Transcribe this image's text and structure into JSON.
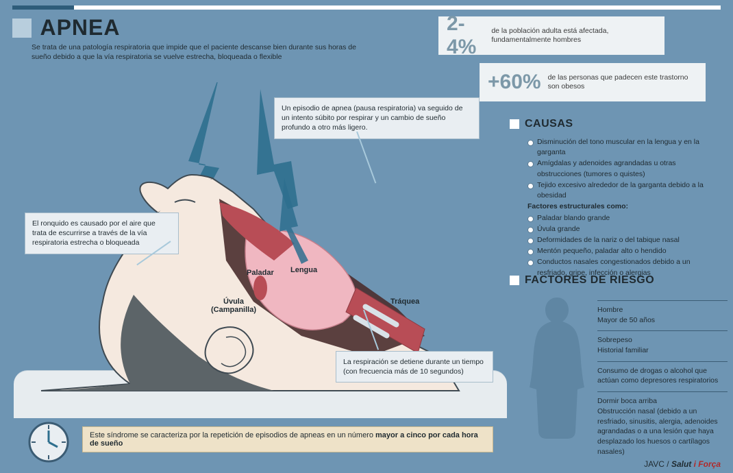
{
  "colors": {
    "background": "#6e95b3",
    "light_panel": "#eef2f4",
    "title_square": "#b8cedd",
    "text_dark": "#1f2a30",
    "stat_num": "#7c98a8",
    "callout_bg": "#e9eef2",
    "callout_border": "#a8bdcb",
    "bottom_bg": "#eee2c8",
    "silhouette": "#5f86a3",
    "head_outline": "#3f4a52",
    "skin": "#f5e9df",
    "tongue": "#f0b7c1",
    "throat": "#b84d56",
    "dark_cavity": "#4a2e2e",
    "hair": "#5c6468",
    "airflow": "#2e6f8e"
  },
  "title": "APNEA",
  "subtitle": "Se trata de una patología respiratoria que impide que el paciente descanse bien durante sus horas de sueño debido a que la vía respiratoria se vuelve estrecha, bloqueada o flexible",
  "stats": [
    {
      "num": "2-4%",
      "text": "de la población adulta está afectada, fundamentalmente hombres"
    },
    {
      "num": "+60%",
      "text": "de las personas que padecen este trastorno son obesos"
    }
  ],
  "sections": {
    "causas": "CAUSAS",
    "factores": "FACTORES DE RIESGO"
  },
  "causas_items": [
    "Disminución del tono muscular en la lengua y en la garganta",
    "Amígdalas y adenoides agrandadas u otras obstrucciones (tumores o quistes)",
    "Tejido excesivo alrededor de la garganta debido a la obesidad",
    "Factores estructurales como:",
    "Paladar blando grande",
    "Úvula grande",
    "Deformidades de la nariz o del tabique nasal",
    "Mentón pequeño, paladar alto o hendido",
    "Conductos nasales congestionados debido a un resfriado, gripe, infección o alergias"
  ],
  "causas_bold_index": 3,
  "risk_groups": [
    [
      "Hombre",
      "Mayor de 50 años"
    ],
    [
      "Sobrepeso",
      "Historial familiar"
    ],
    [
      "Consumo de drogas o alcohol que actúan como depresores respiratorios"
    ],
    [
      "Dormir boca arriba",
      "Obstrucción nasal (debido a un resfriado, sinusitis, alergia, adenoides agrandadas o a una lesión que haya desplazado los huesos o cartílagos nasales)"
    ]
  ],
  "callouts": {
    "c1": "Un episodio de apnea (pausa respiratoria) va seguido de un intento súbito por respirar y un cambio de sueño profundo a otro más ligero.",
    "c2": "El ronquido es causado por el aire que trata de escurrirse a través de la vía respiratoria estrecha o bloqueada",
    "c3": "La respiración se detiene durante un tiempo (con frecuencia más de 10 segundos)"
  },
  "anat": {
    "paladar": "Paladar",
    "lengua": "Lengua",
    "uvula_line1": "Úvula",
    "uvula_line2": "(Campanilla)",
    "traquea": "Tráquea"
  },
  "bottom_pre": "Este síndrome se caracteriza por la repetición de episodios de apneas en un número ",
  "bottom_bold": "mayor a cinco por cada hora de sueño",
  "credit": {
    "a": "JAVC / ",
    "b": "Salut ",
    "c": "i Força"
  }
}
